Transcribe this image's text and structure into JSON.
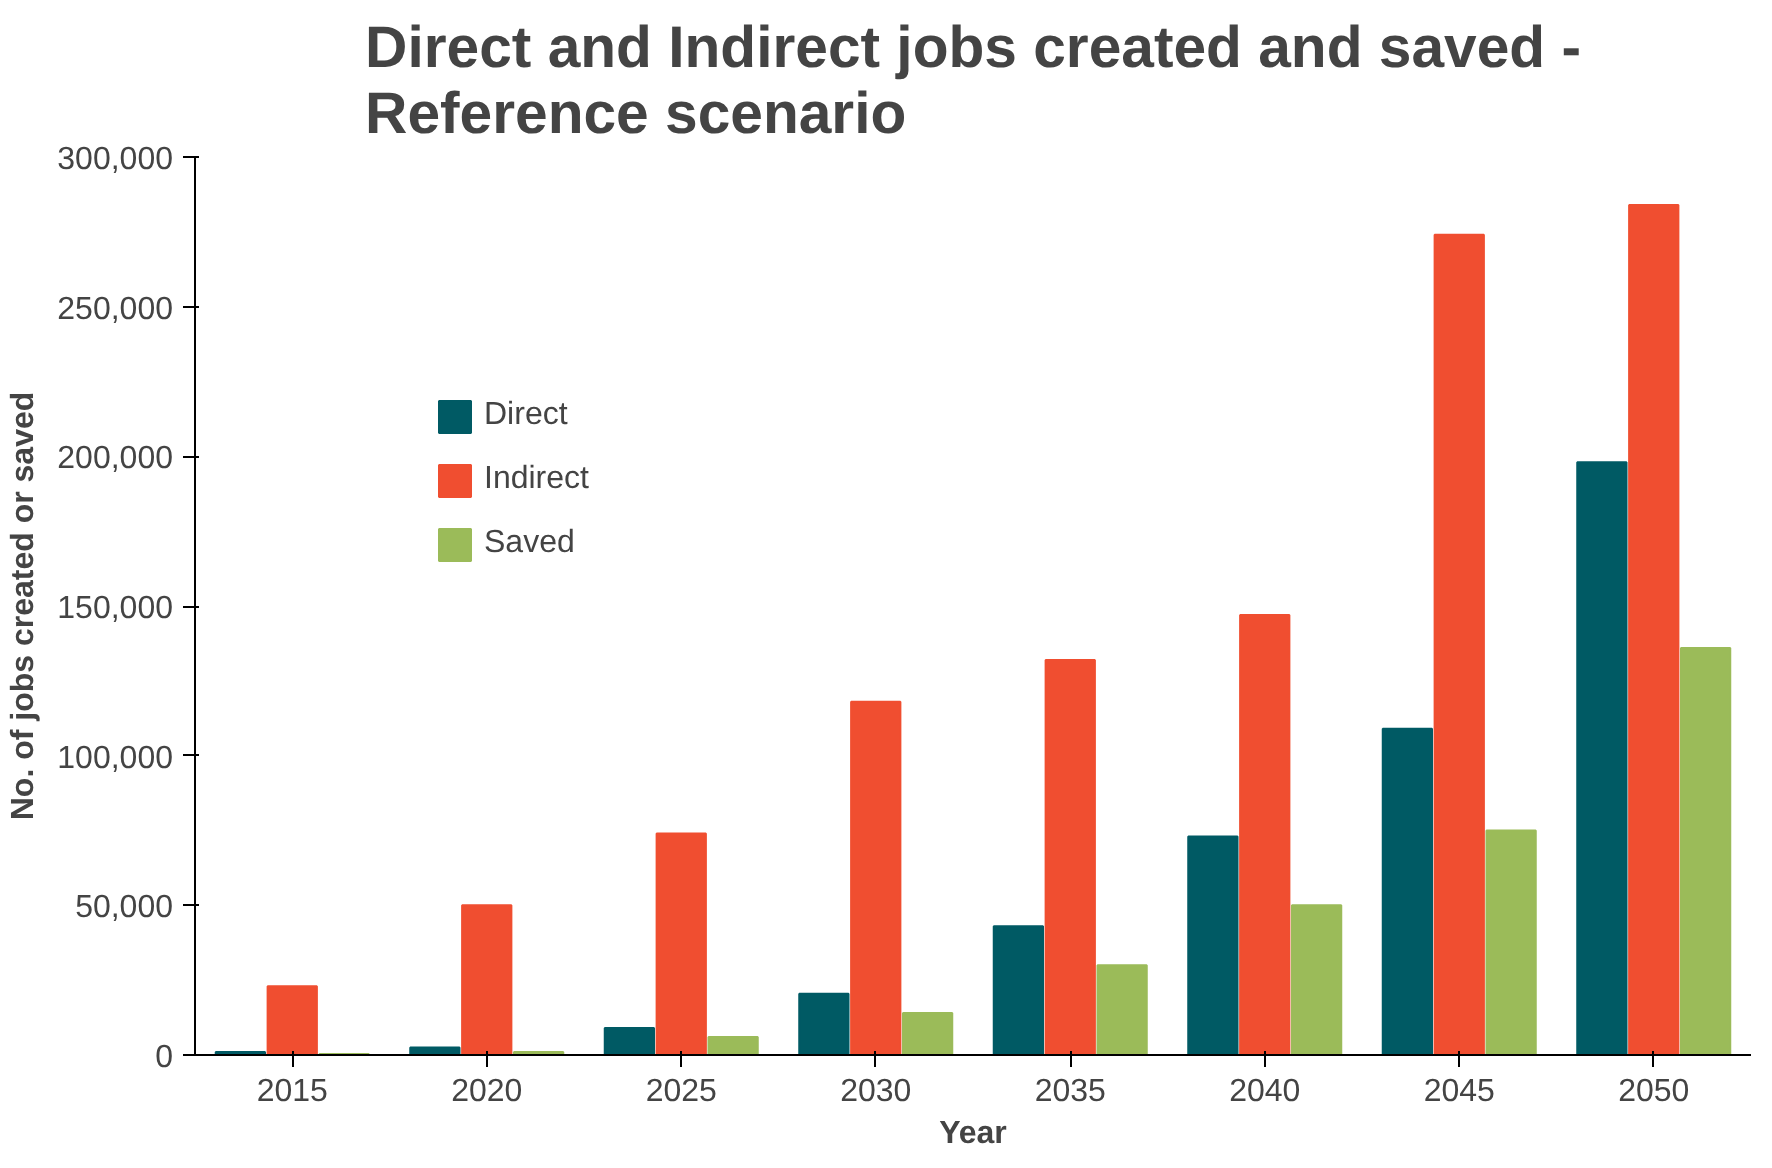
{
  "chart_data": {
    "type": "bar",
    "title": "Direct and Indirect jobs created and saved -\nReference scenario",
    "xlabel": "Year",
    "ylabel": "No. of jobs created or saved",
    "categories": [
      "2015",
      "2020",
      "2025",
      "2030",
      "2035",
      "2040",
      "2045",
      "2050"
    ],
    "series": [
      {
        "name": "Direct",
        "color": "#005a64",
        "values": [
          1000,
          2500,
          9000,
          20500,
          43000,
          73000,
          109000,
          198000
        ]
      },
      {
        "name": "Indirect",
        "color": "#f04e30",
        "values": [
          23000,
          50000,
          74000,
          118000,
          132000,
          147000,
          274000,
          284000
        ]
      },
      {
        "name": "Saved",
        "color": "#9bbb59",
        "values": [
          300,
          1000,
          6000,
          14000,
          30000,
          50000,
          75000,
          136000
        ]
      }
    ],
    "ylim": [
      0,
      300000
    ],
    "yticks": [
      {
        "value": 0,
        "label": "0"
      },
      {
        "value": 50000,
        "label": "50,000"
      },
      {
        "value": 100000,
        "label": "100,000"
      },
      {
        "value": 150000,
        "label": "150,000"
      },
      {
        "value": 200000,
        "label": "200,000"
      },
      {
        "value": 250000,
        "label": "250,000"
      },
      {
        "value": 300000,
        "label": "300,000"
      }
    ],
    "grid": false,
    "legend": "top left"
  }
}
